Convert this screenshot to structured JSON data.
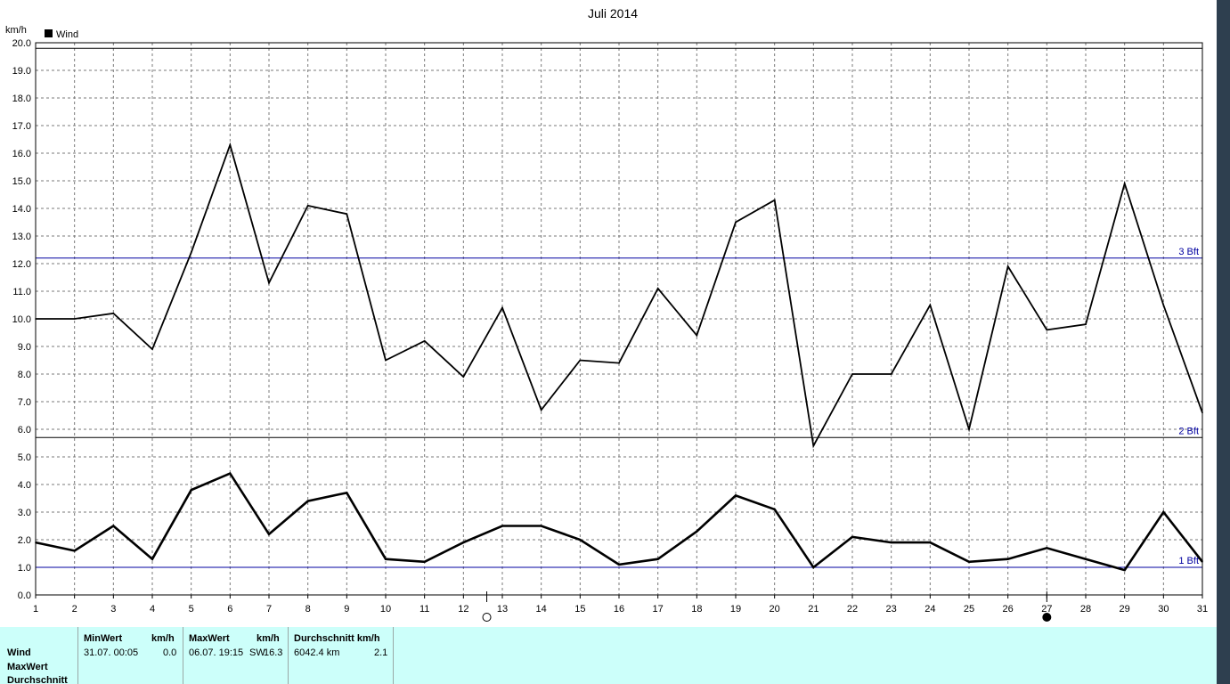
{
  "chart_data": {
    "type": "line",
    "title": "Juli 2014",
    "ylabel": "km/h",
    "ylim": [
      0,
      20
    ],
    "legend": {
      "placement": "top-left",
      "entries": [
        "Wind"
      ]
    },
    "grid": true,
    "x": [
      1,
      2,
      3,
      4,
      5,
      6,
      7,
      8,
      9,
      10,
      11,
      12,
      13,
      14,
      15,
      16,
      17,
      18,
      19,
      20,
      21,
      22,
      23,
      24,
      25,
      26,
      27,
      28,
      29,
      30,
      31
    ],
    "x_tick_labels": [
      "1",
      "2",
      "3",
      "4",
      "5",
      "6",
      "7",
      "8",
      "9",
      "10",
      "11",
      "12",
      "13",
      "14",
      "15",
      "16",
      "17",
      "18",
      "19",
      "20",
      "21",
      "22",
      "23",
      "24",
      "25",
      "26",
      "27",
      "28",
      "29",
      "30",
      "31"
    ],
    "y_tick_labels": [
      "0.0",
      "1.0",
      "2.0",
      "3.0",
      "4.0",
      "5.0",
      "6.0",
      "7.0",
      "8.0",
      "9.0",
      "10.0",
      "11.0",
      "12.0",
      "13.0",
      "14.0",
      "15.0",
      "16.0",
      "17.0",
      "18.0",
      "19.0",
      "20.0"
    ],
    "series": [
      {
        "role": "max",
        "values": [
          10.0,
          10.0,
          10.2,
          8.9,
          12.4,
          16.3,
          11.3,
          14.1,
          13.8,
          8.5,
          9.2,
          7.9,
          10.4,
          6.7,
          8.5,
          8.4,
          11.1,
          9.4,
          13.5,
          14.3,
          5.4,
          8.0,
          8.0,
          10.5,
          6.0,
          11.9,
          9.6,
          9.8,
          14.9,
          10.5,
          6.6
        ]
      },
      {
        "role": "average",
        "values": [
          1.9,
          1.6,
          2.5,
          1.3,
          3.8,
          4.4,
          2.2,
          3.4,
          3.7,
          1.3,
          1.2,
          1.9,
          2.5,
          2.5,
          2.0,
          1.1,
          1.3,
          2.3,
          3.6,
          3.1,
          1.0,
          2.1,
          1.9,
          1.9,
          1.2,
          1.3,
          1.7,
          1.3,
          0.9,
          3.0,
          1.2
        ]
      }
    ],
    "reference_lines": [
      {
        "label": "1 Bft",
        "value": 1.0,
        "color": "#0000a0"
      },
      {
        "label": "2 Bft",
        "value": 5.7,
        "color": "#000000"
      },
      {
        "label": "3 Bft",
        "value": 12.2,
        "color": "#0000a0"
      },
      {
        "label": "",
        "value": 19.8,
        "color": "#000000"
      }
    ],
    "moon_phases": [
      {
        "phase": "full",
        "x": 12.6
      },
      {
        "phase": "new",
        "x": 27.0
      }
    ]
  },
  "stats": {
    "row_labels": [
      "Wind",
      "MaxWert",
      "Durchschnitt"
    ],
    "min": {
      "header": "MinWert",
      "unit": "km/h",
      "time": "31.07.  00:05",
      "value": "0.0"
    },
    "max": {
      "header": "MaxWert",
      "unit": "km/h",
      "time": "06.07.  19:15",
      "direction": "SW",
      "value": "16.3"
    },
    "avg": {
      "header": "Durchschnitt km/h",
      "distance": "6042.4 km",
      "value": "2.1"
    }
  },
  "colors": {
    "stats_background": "#ccfffa",
    "plot_line": "#000000",
    "bft_line": "#0000a0",
    "scrollbar": "#2e3f4f"
  }
}
